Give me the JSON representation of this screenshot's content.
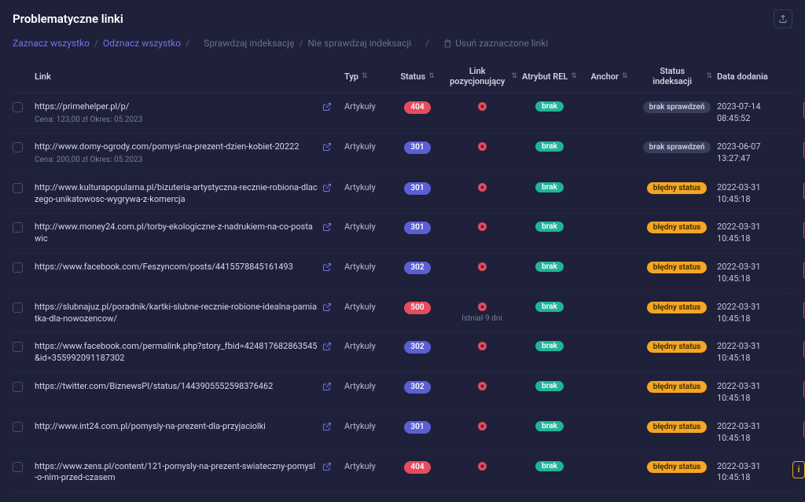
{
  "title": "Problematyczne linki",
  "actions": {
    "select_all": "Zaznacz wszystko",
    "deselect_all": "Odznacz wszystko",
    "check_index": "Sprawdzaj indeksację",
    "no_check_index": "Nie sprawdzaj indeksacji",
    "delete_selected": "Usuń zaznaczone linki"
  },
  "columns": {
    "link": "Link",
    "typ": "Typ",
    "status": "Status",
    "pozycjonujacy": "Link pozycjonujący",
    "rel": "Atrybut REL",
    "anchor": "Anchor",
    "indeksacja": "Status indeksacji",
    "data": "Data dodania"
  },
  "rows": [
    {
      "url": "https://primehelper.pl/p/",
      "meta": "Cena: 123,00 zł   Okres: 05.2023",
      "typ": "Artykuły",
      "status": "404",
      "status_class": "pill-404",
      "poz_sub": "",
      "rel": "brak",
      "idx": "brak sprawdzeń",
      "idx_class": "idx-brak",
      "date1": "2023-07-14",
      "date2": "08:45:52",
      "info": false
    },
    {
      "url": "http://www.domy-ogrody.com/pomysl-na-prezent-dzien-kobiet-20222",
      "meta": "Cena: 200,00 zł   Okres: 05.2023",
      "typ": "Artykuły",
      "status": "301",
      "status_class": "pill-301",
      "poz_sub": "",
      "rel": "brak",
      "idx": "brak sprawdzeń",
      "idx_class": "idx-brak",
      "date1": "2023-06-07",
      "date2": "13:27:47",
      "info": false
    },
    {
      "url": "http://www.kulturapopularna.pl/bizuteria-artystyczna-recznie-robiona-dlaczego-unikatowosc-wygrywa-z-komercja",
      "meta": "",
      "typ": "Artykuły",
      "status": "301",
      "status_class": "pill-301",
      "poz_sub": "",
      "rel": "brak",
      "idx": "błędny status",
      "idx_class": "idx-bledny",
      "date1": "2022-03-31",
      "date2": "10:45:18",
      "info": false
    },
    {
      "url": "http://www.money24.com.pl/torby-ekologiczne-z-nadrukiem-na-co-postawic",
      "meta": "",
      "typ": "Artykuły",
      "status": "301",
      "status_class": "pill-301",
      "poz_sub": "",
      "rel": "brak",
      "idx": "błędny status",
      "idx_class": "idx-bledny",
      "date1": "2022-03-31",
      "date2": "10:45:18",
      "info": false
    },
    {
      "url": "https://www.facebook.com/Feszyncom/posts/4415578845161493",
      "meta": "",
      "typ": "Artykuły",
      "status": "302",
      "status_class": "pill-302",
      "poz_sub": "",
      "rel": "brak",
      "idx": "błędny status",
      "idx_class": "idx-bledny",
      "date1": "2022-03-31",
      "date2": "10:45:18",
      "info": false
    },
    {
      "url": "https://slubnajuz.pl/poradnik/kartki-slubne-recznie-robione-idealna-pamiatka-dla-nowozencow/",
      "meta": "",
      "typ": "Artykuły",
      "status": "500",
      "status_class": "pill-500",
      "poz_sub": "Istniał 9 dni",
      "rel": "brak",
      "idx": "błędny status",
      "idx_class": "idx-bledny",
      "date1": "2022-03-31",
      "date2": "10:45:18",
      "info": false
    },
    {
      "url": "https://www.facebook.com/permalink.php?story_fbid=424817682863545&id=355992091187302",
      "meta": "",
      "typ": "Artykuły",
      "status": "302",
      "status_class": "pill-302",
      "poz_sub": "",
      "rel": "brak",
      "idx": "błędny status",
      "idx_class": "idx-bledny",
      "date1": "2022-03-31",
      "date2": "10:45:18",
      "info": false
    },
    {
      "url": "https://twitter.com/BiznewsPI/status/1443905552598376462",
      "meta": "",
      "typ": "Artykuły",
      "status": "302",
      "status_class": "pill-302",
      "poz_sub": "",
      "rel": "brak",
      "idx": "błędny status",
      "idx_class": "idx-bledny",
      "date1": "2022-03-31",
      "date2": "10:45:18",
      "info": false
    },
    {
      "url": "http://www.int24.com.pl/pomysly-na-prezent-dla-przyjaciolki",
      "meta": "",
      "typ": "Artykuły",
      "status": "301",
      "status_class": "pill-301",
      "poz_sub": "",
      "rel": "brak",
      "idx": "błędny status",
      "idx_class": "idx-bledny",
      "date1": "2022-03-31",
      "date2": "10:45:18",
      "info": false
    },
    {
      "url": "https://www.zens.pl/content/121-pomysly-na-prezent-swiateczny-pomysl-o-nim-przed-czasem",
      "meta": "",
      "typ": "Artykuły",
      "status": "404",
      "status_class": "pill-404",
      "poz_sub": "",
      "rel": "brak",
      "idx": "błędny status",
      "idx_class": "idx-bledny",
      "date1": "2022-03-31",
      "date2": "10:45:18",
      "info": true
    }
  ]
}
